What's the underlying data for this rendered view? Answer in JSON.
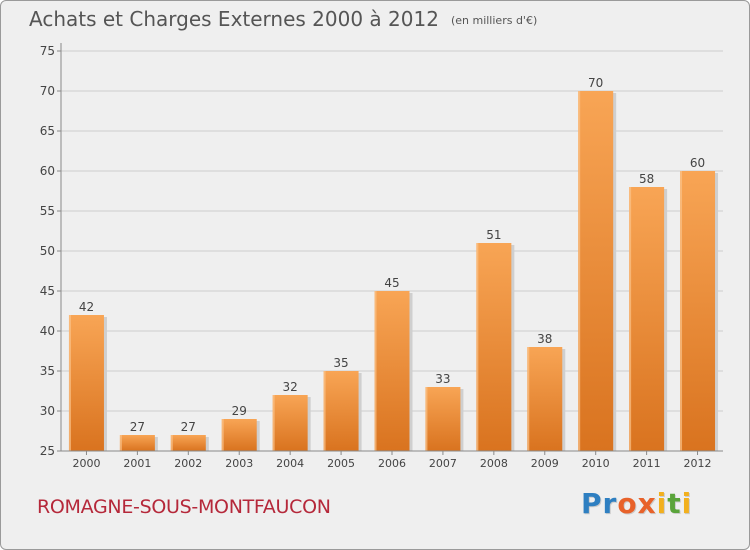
{
  "title": "Achats et Charges Externes 2000 à 2012",
  "subtitle": "(en milliers d'€)",
  "town": "ROMAGNE-SOUS-MONTFAUCON",
  "logo": {
    "letters": [
      "P",
      "r",
      "o",
      "x",
      "i",
      "t",
      "i"
    ],
    "colors": [
      "#2e7fc1",
      "#2e7fc1",
      "#e8622a",
      "#e8622a",
      "#f2b01e",
      "#5aa43a",
      "#f2b01e"
    ]
  },
  "colors": {
    "bar": "#f0913a",
    "bar_light": "#f8b063",
    "bar_dark": "#d4701e",
    "grid": "#cccccc",
    "axis": "#888888",
    "town": "#b5283a",
    "text": "#444444"
  },
  "chart_data": {
    "type": "bar",
    "title": "Achats et Charges Externes 2000 à 2012",
    "subtitle": "(en milliers d'€)",
    "xlabel": "",
    "ylabel": "",
    "ylim": [
      25,
      75
    ],
    "yticks": [
      25,
      30,
      35,
      40,
      45,
      50,
      55,
      60,
      65,
      70,
      75
    ],
    "grid": true,
    "categories": [
      "2000",
      "2001",
      "2002",
      "2003",
      "2004",
      "2005",
      "2006",
      "2007",
      "2008",
      "2009",
      "2010",
      "2011",
      "2012"
    ],
    "values": [
      42,
      27,
      27,
      29,
      32,
      35,
      45,
      33,
      51,
      38,
      70,
      58,
      60
    ]
  }
}
